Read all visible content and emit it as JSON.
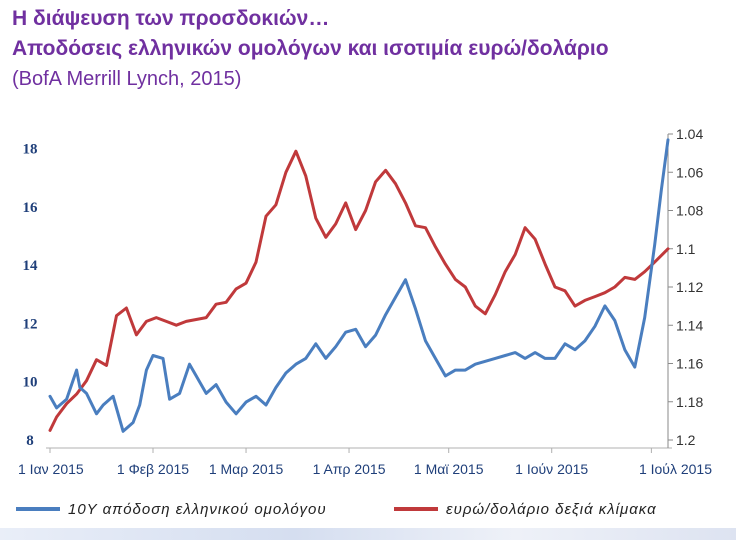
{
  "header": {
    "title_line1": "Η διάψευση των προσδοκιών…",
    "title_line2": "Αποδόσεις ελληνικών ομολόγων και ισοτιμία ευρώ/δολάριο",
    "source": "(BofA Merrill Lynch, 2015)"
  },
  "colors": {
    "title": "#7030a0",
    "series_10y": "#4a7ebf",
    "series_eurusd": "#c0393b"
  },
  "chart_data": {
    "type": "line",
    "title": "Αποδόσεις ελληνικών ομολόγων και ισοτιμία ευρώ/δολάριο",
    "x_ticks": [
      "1 Ιαν 2015",
      "1 Φεβ 2015",
      "1 Μαρ 2015",
      "1 Απρ 2015",
      "1 Μαϊ 2015",
      "1 Ιούν 2015",
      "1 Ιούλ 2015"
    ],
    "x_tick_dates": [
      "2015-01-01",
      "2015-02-01",
      "2015-03-01",
      "2015-04-01",
      "2015-05-01",
      "2015-06-01",
      "2015-07-01"
    ],
    "x_range": [
      "2015-01-01",
      "2015-07-06"
    ],
    "y_left": {
      "range": [
        8,
        18.5
      ],
      "ticks": [
        8,
        10,
        12,
        14,
        16,
        18
      ]
    },
    "y_right": {
      "range": [
        1.04,
        1.2
      ],
      "ticks": [
        "1.04",
        "1.06",
        "1.08",
        "1.1",
        "1.12",
        "1.14",
        "1.16",
        "1.18",
        "1.2"
      ],
      "inverted": true
    },
    "grid": false,
    "legend_position": "bottom",
    "series": [
      {
        "name": "10Y",
        "axis": "left",
        "x": [
          "2015-01-01",
          "2015-01-03",
          "2015-01-06",
          "2015-01-09",
          "2015-01-10",
          "2015-01-12",
          "2015-01-15",
          "2015-01-17",
          "2015-01-20",
          "2015-01-23",
          "2015-01-26",
          "2015-01-28",
          "2015-01-30",
          "2015-02-01",
          "2015-02-04",
          "2015-02-06",
          "2015-02-09",
          "2015-02-12",
          "2015-02-14",
          "2015-02-17",
          "2015-02-20",
          "2015-02-23",
          "2015-02-26",
          "2015-03-01",
          "2015-03-04",
          "2015-03-07",
          "2015-03-10",
          "2015-03-13",
          "2015-03-16",
          "2015-03-19",
          "2015-03-22",
          "2015-03-25",
          "2015-03-28",
          "2015-03-31",
          "2015-04-03",
          "2015-04-06",
          "2015-04-09",
          "2015-04-12",
          "2015-04-15",
          "2015-04-18",
          "2015-04-21",
          "2015-04-24",
          "2015-04-27",
          "2015-04-30",
          "2015-05-03",
          "2015-05-06",
          "2015-05-09",
          "2015-05-12",
          "2015-05-15",
          "2015-05-18",
          "2015-05-21",
          "2015-05-24",
          "2015-05-27",
          "2015-05-30",
          "2015-06-02",
          "2015-06-05",
          "2015-06-08",
          "2015-06-11",
          "2015-06-14",
          "2015-06-17",
          "2015-06-20",
          "2015-06-23",
          "2015-06-26",
          "2015-06-29",
          "2015-07-02",
          "2015-07-04",
          "2015-07-06"
        ],
        "values": [
          9.5,
          9.1,
          9.4,
          10.4,
          9.8,
          9.6,
          8.9,
          9.2,
          9.5,
          8.3,
          8.6,
          9.2,
          10.4,
          10.9,
          10.8,
          9.4,
          9.6,
          10.6,
          10.2,
          9.6,
          9.9,
          9.3,
          8.9,
          9.3,
          9.5,
          9.2,
          9.8,
          10.3,
          10.6,
          10.8,
          11.3,
          10.8,
          11.2,
          11.7,
          11.8,
          11.2,
          11.6,
          12.3,
          12.9,
          13.5,
          12.5,
          11.4,
          10.8,
          10.2,
          10.4,
          10.4,
          10.6,
          10.7,
          10.8,
          10.9,
          11.0,
          10.8,
          11.0,
          10.8,
          10.8,
          11.3,
          11.1,
          11.4,
          11.9,
          12.6,
          12.1,
          11.1,
          10.5,
          12.2,
          14.7,
          16.6,
          18.3
        ]
      },
      {
        "name": "ευρώ/δολάριο δεξιά κλίμακα",
        "axis": "right",
        "x": [
          "2015-01-01",
          "2015-01-03",
          "2015-01-06",
          "2015-01-09",
          "2015-01-12",
          "2015-01-15",
          "2015-01-18",
          "2015-01-21",
          "2015-01-24",
          "2015-01-27",
          "2015-01-30",
          "2015-02-02",
          "2015-02-05",
          "2015-02-08",
          "2015-02-11",
          "2015-02-14",
          "2015-02-17",
          "2015-02-20",
          "2015-02-23",
          "2015-02-26",
          "2015-03-01",
          "2015-03-04",
          "2015-03-07",
          "2015-03-10",
          "2015-03-13",
          "2015-03-16",
          "2015-03-19",
          "2015-03-22",
          "2015-03-25",
          "2015-03-28",
          "2015-03-31",
          "2015-04-03",
          "2015-04-06",
          "2015-04-09",
          "2015-04-12",
          "2015-04-15",
          "2015-04-18",
          "2015-04-21",
          "2015-04-24",
          "2015-04-27",
          "2015-04-30",
          "2015-05-03",
          "2015-05-06",
          "2015-05-09",
          "2015-05-12",
          "2015-05-15",
          "2015-05-18",
          "2015-05-21",
          "2015-05-24",
          "2015-05-27",
          "2015-05-30",
          "2015-06-02",
          "2015-06-05",
          "2015-06-08",
          "2015-06-11",
          "2015-06-14",
          "2015-06-17",
          "2015-06-20",
          "2015-06-23",
          "2015-06-26",
          "2015-06-29",
          "2015-07-02",
          "2015-07-06"
        ],
        "values": [
          1.195,
          1.188,
          1.181,
          1.176,
          1.169,
          1.158,
          1.161,
          1.135,
          1.131,
          1.145,
          1.138,
          1.136,
          1.138,
          1.14,
          1.138,
          1.137,
          1.136,
          1.129,
          1.128,
          1.121,
          1.118,
          1.107,
          1.083,
          1.077,
          1.06,
          1.049,
          1.062,
          1.084,
          1.094,
          1.087,
          1.076,
          1.09,
          1.08,
          1.065,
          1.059,
          1.066,
          1.076,
          1.088,
          1.089,
          1.099,
          1.108,
          1.116,
          1.12,
          1.13,
          1.134,
          1.124,
          1.112,
          1.103,
          1.089,
          1.095,
          1.108,
          1.12,
          1.122,
          1.13,
          1.127,
          1.125,
          1.123,
          1.12,
          1.115,
          1.116,
          1.112,
          1.107,
          1.1
        ]
      }
    ]
  },
  "legend": {
    "series_10y_label": "10Y    απόδοση ελληνικού ομολόγου",
    "series_eurusd_label": "ευρώ/δολάριο δεξιά κλίμακα"
  }
}
